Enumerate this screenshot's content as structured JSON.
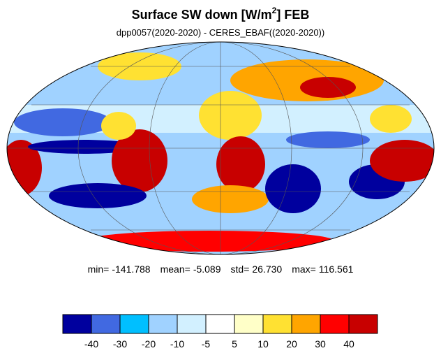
{
  "header": {
    "title": "Surface SW down [W/m",
    "title_sup": "2",
    "title_end": "]  FEB",
    "subtitle": "dpp0057(2020-2020) - CERES_EBAF((2020-2020))"
  },
  "stats": [
    {
      "label": "min=",
      "value": "-141.788"
    },
    {
      "label": "mean=",
      "value": "-5.089"
    },
    {
      "label": "std=",
      "value": "26.730"
    },
    {
      "label": "max=",
      "value": "116.561"
    }
  ],
  "colorbar": {
    "colors": [
      "#00009e",
      "#4169e1",
      "#00bfff",
      "#a0d2ff",
      "#d2f0ff",
      "#ffffff",
      "#ffffc8",
      "#ffe132",
      "#ffa500",
      "#ff0000",
      "#c80000"
    ],
    "ticks": [
      -40,
      -30,
      -20,
      -10,
      -5,
      5,
      10,
      20,
      30,
      40
    ]
  }
}
